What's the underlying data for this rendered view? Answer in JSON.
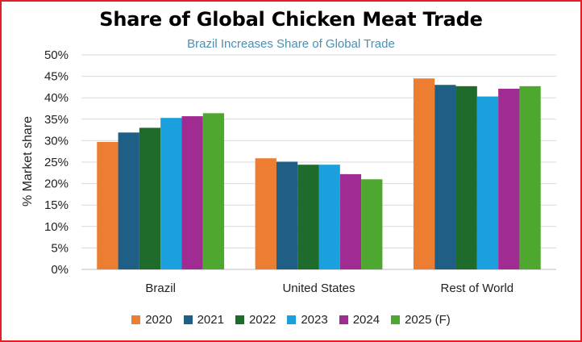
{
  "chart_data": {
    "type": "bar",
    "title": "Share of Global Chicken Meat Trade",
    "subtitle": "Brazil Increases Share of Global Trade",
    "xlabel": "",
    "ylabel": "% Market share",
    "ylim": [
      0,
      50
    ],
    "y_ticks": [
      "0%",
      "5%",
      "10%",
      "15%",
      "20%",
      "25%",
      "30%",
      "35%",
      "40%",
      "45%",
      "50%"
    ],
    "grid": true,
    "legend_position": "bottom",
    "categories": [
      "Brazil",
      "United States",
      "Rest of World"
    ],
    "series": [
      {
        "name": "2020",
        "color": "#ed7d31",
        "values": [
          29.7,
          25.9,
          44.5
        ]
      },
      {
        "name": "2021",
        "color": "#1f5f86",
        "values": [
          31.9,
          25.1,
          43.0
        ]
      },
      {
        "name": "2022",
        "color": "#1e6b2c",
        "values": [
          33.0,
          24.4,
          42.7
        ]
      },
      {
        "name": "2023",
        "color": "#1aa0dc",
        "values": [
          35.3,
          24.4,
          40.3
        ]
      },
      {
        "name": "2024",
        "color": "#a02b93",
        "values": [
          35.7,
          22.2,
          42.1
        ]
      },
      {
        "name": "2025 (F)",
        "color": "#4ea72e",
        "values": [
          36.4,
          21.0,
          42.7
        ]
      }
    ]
  }
}
